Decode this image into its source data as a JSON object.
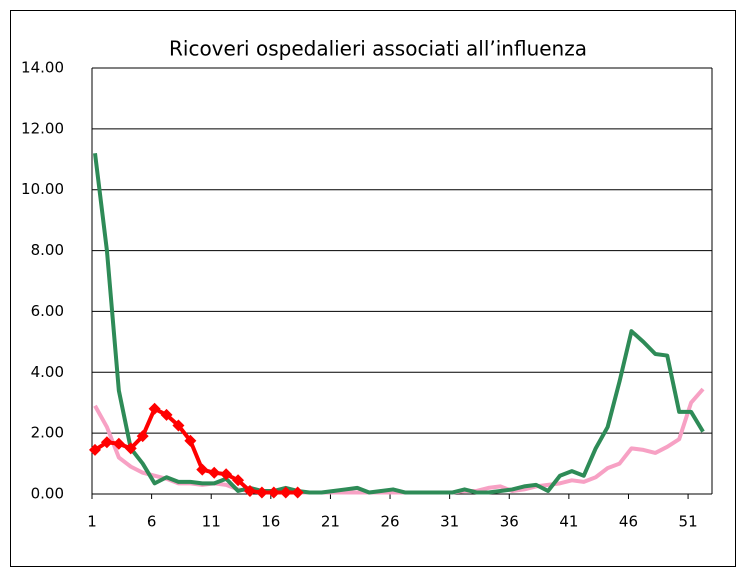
{
  "chart_data": {
    "type": "line",
    "title": "Ricoveri ospedalieri associati all’influenza",
    "categories": [
      "1",
      null,
      null,
      null,
      null,
      "6",
      null,
      null,
      null,
      null,
      "11",
      null,
      null,
      null,
      null,
      "16",
      null,
      null,
      null,
      null,
      "21",
      null,
      null,
      null,
      null,
      "26",
      null,
      null,
      null,
      null,
      "31",
      null,
      null,
      null,
      null,
      "36",
      null,
      null,
      null,
      null,
      "41",
      null,
      null,
      null,
      null,
      "46",
      null,
      null,
      null,
      null,
      "51",
      null
    ],
    "series": [
      {
        "color": "#f7a1c4",
        "values": [
          2.9,
          2.2,
          1.2,
          0.9,
          0.7,
          0.6,
          0.5,
          0.35,
          0.35,
          0.3,
          0.35,
          0.3,
          0.15,
          0.1,
          0.05,
          0.05,
          0.05,
          0.05,
          0.05,
          0.05,
          0.05,
          0.05,
          0.05,
          0.05,
          0.05,
          0.05,
          0.05,
          0.05,
          0.05,
          0.05,
          0.05,
          0.1,
          0.1,
          0.2,
          0.25,
          0.1,
          0.15,
          0.25,
          0.3,
          0.35,
          0.45,
          0.4,
          0.55,
          0.85,
          1.0,
          1.5,
          1.45,
          1.35,
          1.55,
          1.8,
          3.0,
          3.45
        ]
      },
      {
        "color": "#2e8b57",
        "values": [
          11.2,
          8.0,
          3.4,
          1.5,
          1.0,
          0.35,
          0.55,
          0.4,
          0.4,
          0.35,
          0.35,
          0.5,
          0.1,
          0.2,
          0.1,
          0.1,
          0.2,
          0.1,
          0.05,
          0.05,
          0.1,
          0.15,
          0.2,
          0.05,
          0.1,
          0.15,
          0.05,
          0.05,
          0.05,
          0.05,
          0.05,
          0.15,
          0.05,
          0.05,
          0.1,
          0.15,
          0.25,
          0.3,
          0.1,
          0.6,
          0.75,
          0.6,
          1.5,
          2.2,
          3.7,
          5.35,
          5.0,
          4.6,
          4.55,
          2.7,
          2.7,
          2.05
        ]
      },
      {
        "color": "#ff0000",
        "marker": "diamond",
        "values": [
          1.45,
          1.7,
          1.65,
          1.5,
          1.9,
          2.8,
          2.6,
          2.25,
          1.75,
          0.8,
          0.7,
          0.65,
          0.45,
          0.1,
          0.05,
          0.05,
          0.05,
          0.05,
          null,
          null,
          null,
          null,
          null,
          null,
          null,
          null,
          null,
          null,
          null,
          null,
          null,
          null,
          null,
          null,
          null,
          null,
          null,
          null,
          null,
          null,
          null,
          null,
          null,
          null,
          null,
          null,
          null,
          null,
          null,
          null,
          null,
          null
        ]
      }
    ],
    "ylim": [
      0,
      14
    ],
    "yticks": [
      {
        "value": 0,
        "label": "0.00"
      },
      {
        "value": 2,
        "label": "2.00"
      },
      {
        "value": 4,
        "label": "4.00"
      },
      {
        "value": 6,
        "label": "6.00"
      },
      {
        "value": 8,
        "label": "8.00"
      },
      {
        "value": 10,
        "label": "10.00"
      },
      {
        "value": 12,
        "label": "12.00"
      },
      {
        "value": 14,
        "label": "14.00"
      }
    ],
    "grid": true
  }
}
